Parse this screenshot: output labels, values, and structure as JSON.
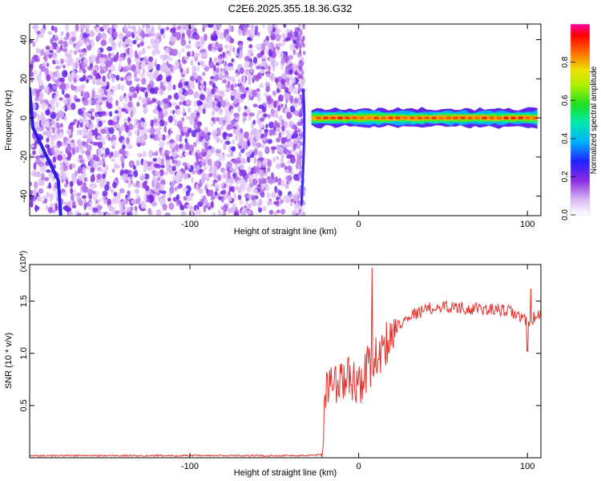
{
  "figure_title": "C2E6.2025.355.18.36.G32",
  "chart_data": [
    {
      "type": "heatmap",
      "title": "C2E6.2025.355.18.36.G32",
      "xlabel": "Height of straight line (km)",
      "ylabel": "Frequency (Hz)",
      "xlim": [
        -195,
        108
      ],
      "ylim": [
        -50,
        48
      ],
      "x_ticks": [
        -100,
        0,
        100
      ],
      "y_ticks": [
        -40,
        -20,
        0,
        20,
        40
      ],
      "colorbar": {
        "label": "Normalized spectral amplitude",
        "range": [
          0,
          1
        ],
        "ticks": [
          0.0,
          0.2,
          0.4,
          0.6,
          0.8
        ]
      },
      "regions": [
        {
          "name": "noise",
          "x_range": [
            -195,
            -33
          ],
          "y_range": [
            -50,
            48
          ],
          "amplitude": [
            0.05,
            0.25
          ]
        },
        {
          "name": "signal-band",
          "x_range": [
            -28,
            108
          ],
          "center_frequency_hz": 0,
          "half_width_hz": 3,
          "peak_amplitude": 0.95
        },
        {
          "name": "edge-streak",
          "x_range": [
            -195,
            -188
          ],
          "y_range": [
            -50,
            15
          ],
          "amplitude": 0.15
        }
      ],
      "grid": false
    },
    {
      "type": "line",
      "xlabel": "Height of straight line (km)",
      "ylabel": "SNR (10 * v/v)",
      "y_multiplier": "x10^4",
      "xlim": [
        -195,
        108
      ],
      "ylim": [
        0,
        1.85
      ],
      "x_ticks": [
        -100,
        0,
        100
      ],
      "y_ticks": [
        0.5,
        1.0,
        1.5
      ],
      "y_tick_labels": [
        "0.5",
        "1.0",
        "1.5"
      ],
      "series_color": "#e8302a",
      "profile_points": [
        [
          -195,
          0.02
        ],
        [
          -33,
          0.02
        ],
        [
          -22,
          0.03
        ],
        [
          -20,
          0.6
        ],
        [
          -18,
          0.75
        ],
        [
          -15,
          0.7
        ],
        [
          -10,
          0.72
        ],
        [
          -5,
          0.78
        ],
        [
          0,
          0.7
        ],
        [
          5,
          0.85
        ],
        [
          10,
          0.95
        ],
        [
          15,
          1.05
        ],
        [
          20,
          1.2
        ],
        [
          25,
          1.3
        ],
        [
          30,
          1.36
        ],
        [
          40,
          1.42
        ],
        [
          50,
          1.45
        ],
        [
          60,
          1.44
        ],
        [
          70,
          1.42
        ],
        [
          80,
          1.42
        ],
        [
          90,
          1.4
        ],
        [
          95,
          1.35
        ],
        [
          100,
          1.3
        ],
        [
          108,
          1.38
        ]
      ],
      "notable_values": [
        {
          "x": 8,
          "y": 1.82
        },
        {
          "x": 100,
          "y": 1.02
        },
        {
          "x": 102,
          "y": 1.62
        }
      ],
      "grid": false
    }
  ]
}
